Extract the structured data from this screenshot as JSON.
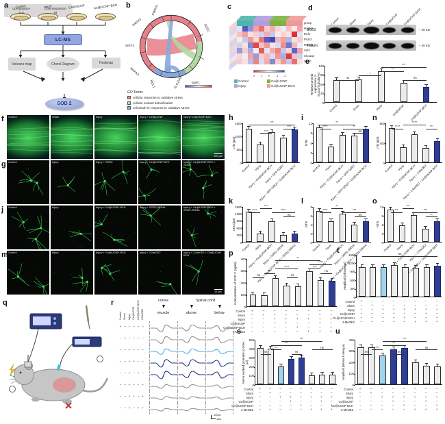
{
  "panel_a": {
    "letter": "a",
    "dishes": [
      "Control",
      "Injury",
      "Ce@UCNP",
      "Ce@UCNP-BCH"
    ],
    "lcms": "LC-MS",
    "branch_volcano": "Volcano map",
    "branch_chord": "Chord Diagram",
    "branch_heatmap": "Heatmap",
    "up_label": "Upregulation",
    "up_count": "118",
    "down_label": "Downregulation",
    "down_count": "84",
    "result": "SOD 2"
  },
  "panel_b": {
    "letter": "b",
    "genes": [
      "RWDD1",
      "PRDX3",
      "SIRT2",
      "MAPK3",
      "MCL1",
      "SLC11A2",
      "SOD2"
    ],
    "go_title": "GO Terms",
    "legend": [
      {
        "label": "cellular response to oxidative stress",
        "color": "#e8808a"
      },
      {
        "label": "cellular oxidant detoxification",
        "color": "#b3d8a4"
      },
      {
        "label": "cell death in response to oxidative stress",
        "color": "#86a8dc"
      }
    ],
    "scale_label": "logFC"
  },
  "panel_c": {
    "letter": "c",
    "row_labels": [
      "group",
      "Mapk3",
      "Mcl1",
      "Prdx3",
      "Rwdd1",
      "Sirt2",
      "Slc11a2",
      "Sod2"
    ],
    "group_colors": [
      "#4db6ac",
      "#b39ddb",
      "#7cb342",
      "#ef9a9a"
    ],
    "legend": [
      {
        "label": "Control",
        "color": "#4db6ac"
      },
      {
        "label": "Injury",
        "color": "#b39ddb"
      },
      {
        "label": "Ce@UCNP",
        "color": "#7cb342"
      },
      {
        "label": "Ce@UCNP-BCH",
        "color": "#ef9a9a"
      }
    ],
    "scale_ticks": [
      "2",
      "1",
      "0",
      "-1",
      "-2"
    ],
    "matrix": [
      [
        -0.3,
        -1.8,
        -1.2,
        0.9,
        1.4,
        0.5,
        0.8,
        0.4,
        -0.2,
        0.6,
        0.2,
        0.9
      ],
      [
        0.6,
        0.9,
        0.3,
        0.5,
        -0.5,
        0.8,
        -0.6,
        0.2,
        0.4,
        0.3,
        2.0,
        -0.3
      ],
      [
        0.2,
        -0.6,
        1.0,
        0.4,
        1.3,
        -1.8,
        -2.0,
        0.7,
        0.9,
        -0.8,
        0.3,
        0.5
      ],
      [
        -0.5,
        0.3,
        -1.3,
        1.8,
        0.6,
        1.0,
        0.3,
        -0.4,
        1.1,
        -1.5,
        0.7,
        -0.2
      ],
      [
        -1.1,
        0.5,
        -0.9,
        0.2,
        1.6,
        -0.3,
        0.8,
        1.2,
        -0.6,
        0.4,
        -1.7,
        0.9
      ],
      [
        0.4,
        -0.2,
        0.9,
        -1.1,
        0.5,
        0.7,
        -0.4,
        1.0,
        -0.9,
        1.9,
        0.6,
        -0.5
      ],
      [
        0.5,
        0.3,
        -0.7,
        1.2,
        -0.4,
        0.8,
        -1.3,
        0.5,
        1.0,
        -0.6,
        1.4,
        0.3
      ]
    ]
  },
  "panel_d": {
    "letter": "d",
    "lanes": [
      "Control",
      "Sham",
      "Injury",
      "Ce@UCNP",
      "Ce@UCNP-BCH"
    ],
    "bands": [
      {
        "label": "SOD2",
        "marker": "25 KD"
      },
      {
        "label": "Tubulin",
        "marker": "45 KD"
      }
    ]
  },
  "micro": {
    "rows": [
      {
        "letter": "f",
        "type": "tissue",
        "scale": "200 µm",
        "cells": [
          "Control",
          "Sham",
          "Injury",
          "Injury + Ce@UCNP",
          "Injury+Ce@UCNP-BCH"
        ],
        "density": [
          0,
          0,
          0,
          0,
          0
        ]
      },
      {
        "letter": "g",
        "type": "neuron",
        "cells": [
          "Control",
          "Injury",
          "Injury + SOD2",
          "Injury + Ce@UCNP-BCH",
          "Injury + Ce@UCNP-BCH + SOD2"
        ],
        "density": [
          2,
          1,
          2,
          2,
          3
        ]
      },
      {
        "letter": "j",
        "type": "neuron",
        "cells": [
          "Control",
          "Injury",
          "Injury + Ce@UCNP-BCH",
          "Injury + SOD2-SiRNA",
          "Injury + Ce@UCNP-BCH + SOD2-SiRNA"
        ],
        "density": [
          3,
          1,
          2,
          1,
          2
        ]
      },
      {
        "letter": "m",
        "type": "neuron",
        "scale": "10 µm",
        "cells": [
          "Control",
          "Injury",
          "Injury + Ce@UCNP-BCH",
          "Injury + 2-MeOE2",
          "Injury + 2-MeOE2 + Ce@UCNP-BCH"
        ],
        "density": [
          2,
          2,
          2,
          1,
          1
        ]
      }
    ]
  },
  "panel_q": {
    "letter": "q"
  },
  "panel_r": {
    "letter": "r",
    "condition_labels": [
      "Control",
      "Sham",
      "Injury",
      "Ce@UCNP",
      "Ce@UCNP-BCH",
      "2-MeOE2"
    ],
    "header_cortex": "cortex",
    "header_spinal": "Spinal cord",
    "col_labels": [
      "muscle",
      "above",
      "below"
    ],
    "rows": [
      {
        "signs": "+-----",
        "color": "gray",
        "amp": 0.9
      },
      {
        "signs": "-+----",
        "color": "gray",
        "amp": 0.9
      },
      {
        "signs": "--+---",
        "color": "lightblue",
        "amp": 0.7
      },
      {
        "signs": "--++--",
        "color": "navy",
        "amp": 1.0
      },
      {
        "signs": "--+-+-",
        "color": "navy",
        "amp": 1.0
      },
      {
        "signs": "--+--+",
        "color": "gray",
        "amp": 0.5
      },
      {
        "signs": "--++-+",
        "color": "gray",
        "amp": 0.4
      },
      {
        "signs": "--+-++",
        "color": "gray",
        "amp": 0.35
      }
    ],
    "scale_v": "100µv",
    "scale_t": "1ms"
  },
  "chart_data": [
    {
      "id": "e",
      "letter": "e",
      "type": "bar",
      "ylabel": "Relative protein expression of SOD2/Tubulin(%)",
      "ylim": [
        0,
        120
      ],
      "yticks": [
        0,
        30,
        60,
        90,
        120
      ],
      "categories": [
        "Control",
        "Sham",
        "Injury",
        "Ce@UCNP",
        "Ce@UCNP-BCH"
      ],
      "values": [
        72,
        74,
        100,
        63,
        48
      ],
      "colors": [
        "g",
        "g",
        "g",
        "g",
        "nv"
      ],
      "sig": [
        [
          0,
          1,
          "ns",
          3
        ],
        [
          1,
          2,
          "*",
          2
        ],
        [
          2,
          3,
          "**",
          1
        ],
        [
          2,
          4,
          "***",
          0
        ],
        [
          3,
          4,
          "ns",
          3
        ]
      ]
    },
    {
      "id": "h",
      "letter": "h",
      "type": "bar",
      "ylabel": "LTB (µm)",
      "ylim": [
        0,
        1500
      ],
      "yticks": [
        0,
        500,
        1000,
        1500
      ],
      "categories": [
        "Control",
        "Injury",
        "Injury + Ce@UCNP-BCH",
        "Injury + GFP-SOD2",
        "Injury + GFP-SOD2 + Ce@UCNP-BCH"
      ],
      "values": [
        1280,
        680,
        1150,
        930,
        1250
      ],
      "colors": [
        "g",
        "g",
        "g",
        "g",
        "nv"
      ],
      "sig": [
        [
          0,
          4,
          "***",
          0
        ],
        [
          1,
          2,
          "***",
          2
        ],
        [
          3,
          4,
          "***",
          1
        ]
      ]
    },
    {
      "id": "i",
      "letter": "i",
      "type": "bar",
      "ylabel": "NTB",
      "ylim": [
        0,
        12
      ],
      "yticks": [
        0,
        3,
        6,
        9,
        12
      ],
      "categories": [
        "Control",
        "Injury",
        "Injury + Ce@UCNP-BCH",
        "Injury + GFP-SOD2",
        "Injury + GFP-SOD2 + Ce@UCNP-BCH"
      ],
      "values": [
        10.5,
        4.8,
        8.2,
        8.0,
        10.2
      ],
      "colors": [
        "g",
        "g",
        "g",
        "g",
        "nv"
      ],
      "sig": [
        [
          0,
          1,
          "****",
          1
        ],
        [
          0,
          3,
          "**",
          0
        ],
        [
          2,
          4,
          "**",
          1
        ],
        [
          3,
          4,
          "ns",
          2
        ]
      ]
    },
    {
      "id": "n",
      "letter": "n",
      "type": "bar",
      "ylabel": "LTB (µm)",
      "ylim": [
        0,
        800
      ],
      "yticks": [
        0,
        400,
        800
      ],
      "categories": [
        "Control",
        "Injury",
        "Injury + Ce@UCNP-BCH",
        "Injury + 2-MeOE2",
        "Injury + 2-MeOE2 + Ce@UCNP-BCH"
      ],
      "values": [
        690,
        300,
        570,
        290,
        430
      ],
      "colors": [
        "g",
        "g",
        "g",
        "g",
        "nv"
      ],
      "sig": [
        [
          0,
          1,
          "****",
          1
        ],
        [
          1,
          3,
          "****",
          0
        ],
        [
          3,
          4,
          "***",
          1
        ]
      ]
    },
    {
      "id": "k",
      "letter": "k",
      "type": "bar",
      "ylabel": "LTB (µm)",
      "ylim": [
        0,
        1500
      ],
      "yticks": [
        0,
        300,
        600,
        900,
        1200,
        1500
      ],
      "categories": [
        "Control",
        "Injury",
        "Injury + Ce@UCNP-BCH",
        "Injury + SOD2-SiRNA",
        "Injury + Ce@UCNP-BCH + SOD2-SiRNA"
      ],
      "values": [
        1280,
        350,
        880,
        280,
        350
      ],
      "colors": [
        "g",
        "g",
        "g",
        "g",
        "nv"
      ],
      "sig": [
        [
          0,
          1,
          "****",
          1
        ],
        [
          1,
          2,
          "***",
          0
        ],
        [
          2,
          4,
          "****",
          1
        ],
        [
          3,
          4,
          "ns",
          2
        ]
      ]
    },
    {
      "id": "l",
      "letter": "l",
      "type": "bar",
      "ylabel": "NTB",
      "ylim": [
        0,
        8
      ],
      "yticks": [
        0,
        2,
        4,
        6,
        8
      ],
      "categories": [
        "Control",
        "Injury",
        "Injury + Ce@UCNP-BCH",
        "Injury + SOD2-SiRNA",
        "Injury + Ce@UCNP-BCH + SOD2-SiRNA"
      ],
      "values": [
        7.0,
        4.6,
        6.3,
        3.9,
        4.6
      ],
      "colors": [
        "g",
        "g",
        "g",
        "g",
        "nv"
      ],
      "sig": [
        [
          0,
          1,
          "****",
          1
        ],
        [
          1,
          2,
          "**",
          0
        ],
        [
          2,
          4,
          "***",
          1
        ],
        [
          3,
          4,
          "ns",
          2
        ]
      ]
    },
    {
      "id": "o",
      "letter": "o",
      "type": "bar",
      "ylabel": "NTB",
      "ylim": [
        0,
        12
      ],
      "yticks": [
        0,
        3,
        6,
        9,
        12
      ],
      "categories": [
        "Control",
        "Injury",
        "Injury + Ce@UCNP-BCH",
        "Injury + 2-MeOE2",
        "Injury + 2-MeOE2 + Ce@UCNP-BCH"
      ],
      "values": [
        10.8,
        5.6,
        8.9,
        4.3,
        7.0
      ],
      "colors": [
        "g",
        "g",
        "g",
        "g",
        "nv"
      ],
      "sig": [
        [
          0,
          1,
          "***",
          1
        ],
        [
          1,
          2,
          "***",
          0
        ],
        [
          2,
          4,
          "***",
          1
        ],
        [
          3,
          4,
          "**",
          2
        ]
      ]
    },
    {
      "id": "p",
      "letter": "p",
      "type": "bar",
      "ylabel": "Concentration of SOD 2 (ng/ml)",
      "ylim": [
        0,
        400
      ],
      "yticks": [
        0,
        100,
        200,
        300,
        400
      ],
      "values": [
        95,
        90,
        235,
        170,
        165,
        290,
        218,
        212
      ],
      "colors": [
        "g",
        "g",
        "g",
        "g",
        "g",
        "g",
        "g",
        "nv"
      ],
      "sig": [
        [
          0,
          1,
          "ns",
          4
        ],
        [
          1,
          2,
          "***",
          3
        ],
        [
          2,
          4,
          "****",
          2
        ],
        [
          3,
          4,
          "ns",
          4
        ],
        [
          2,
          6,
          "**",
          0
        ],
        [
          5,
          7,
          "****",
          1
        ],
        [
          5,
          6,
          "***",
          2
        ],
        [
          6,
          7,
          "ns",
          3
        ]
      ],
      "matrix_rows": [
        {
          "label": "Control",
          "signs": "+-------"
        },
        {
          "label": "Sham",
          "signs": "-+------"
        },
        {
          "label": "Injury",
          "signs": "--++++++"
        },
        {
          "label": "Ce@UCNP",
          "signs": "---+--+-"
        },
        {
          "label": "Ce@UCNP-BCH",
          "signs": "----+--+"
        },
        {
          "label": "2-MeOE2",
          "signs": "-----+++"
        }
      ]
    },
    {
      "id": "t",
      "letter": "t",
      "type": "bar",
      "ylabel": "Amplitud (Above µv)",
      "ylim": [
        0,
        1500
      ],
      "yticks": [
        0,
        300,
        600,
        900,
        1200,
        1500
      ],
      "values": [
        1030,
        1050,
        1040,
        1110,
        1040,
        1010,
        1050,
        1100
      ],
      "colors": [
        "g",
        "g",
        "lb",
        "g",
        "g",
        "g",
        "g",
        "nv"
      ],
      "sig": [
        [
          0,
          7,
          "ns",
          0
        ]
      ],
      "matrix_rows": [
        {
          "label": "Control",
          "signs": "+-------"
        },
        {
          "label": "Sham",
          "signs": "-+------"
        },
        {
          "label": "Injury",
          "signs": "--++++++"
        },
        {
          "label": "Ce@UCNP",
          "signs": "---+--+-"
        },
        {
          "label": "Ce@UCNP-BCH",
          "signs": "----+--+"
        },
        {
          "label": "2-MeOE2",
          "signs": "-----+++"
        }
      ]
    },
    {
      "id": "s",
      "letter": "s",
      "type": "bar",
      "ylabel": "Motor evoked potential (Cortex µv)",
      "ylim": [
        0,
        500
      ],
      "yticks": [
        0,
        100,
        200,
        300,
        400,
        500
      ],
      "values": [
        400,
        395,
        200,
        280,
        295,
        95,
        105,
        105
      ],
      "colors": [
        "g",
        "g",
        "lb",
        "nv",
        "nv",
        "g",
        "g",
        "g"
      ],
      "sig": [
        [
          0,
          1,
          "ns",
          3
        ],
        [
          1,
          2,
          "***",
          2
        ],
        [
          1,
          4,
          "***",
          1
        ],
        [
          3,
          4,
          "ns",
          3
        ],
        [
          2,
          6,
          "***",
          0
        ],
        [
          5,
          7,
          "ns",
          2
        ]
      ],
      "matrix_rows": [
        {
          "label": "Control",
          "signs": "+-------"
        },
        {
          "label": "Sham",
          "signs": "-+------"
        },
        {
          "label": "Injury",
          "signs": "--++++++"
        },
        {
          "label": "Ce@UCNP",
          "signs": "---+--+-"
        },
        {
          "label": "Ce@UCNP-BCH",
          "signs": "----+--+"
        },
        {
          "label": "2-MeOE2",
          "signs": "-----+++"
        }
      ]
    },
    {
      "id": "u",
      "letter": "u",
      "type": "bar",
      "ylabel": "Amplitud (Below 5 mm µv)",
      "ylim": [
        0,
        400
      ],
      "yticks": [
        0,
        100,
        200,
        300,
        400
      ],
      "values": [
        330,
        330,
        255,
        310,
        320,
        195,
        165,
        160
      ],
      "colors": [
        "g",
        "g",
        "lb",
        "nv",
        "nv",
        "g",
        "g",
        "g"
      ],
      "sig": [
        [
          0,
          1,
          "ns",
          3
        ],
        [
          1,
          2,
          "***",
          2
        ],
        [
          2,
          4,
          "**",
          1
        ],
        [
          3,
          4,
          "ns",
          3
        ],
        [
          2,
          6,
          "***",
          0
        ],
        [
          5,
          7,
          "ns",
          2
        ]
      ],
      "matrix_rows": [
        {
          "label": "Control",
          "signs": "+-------"
        },
        {
          "label": "Sham",
          "signs": "-+------"
        },
        {
          "label": "Injury",
          "signs": "--++++++"
        },
        {
          "label": "Ce@UCNP",
          "signs": "---+--+-"
        },
        {
          "label": "Ce@UCNP-BCH",
          "signs": "----+--+"
        },
        {
          "label": "2-MeOE2",
          "signs": "-----+++"
        }
      ]
    }
  ]
}
